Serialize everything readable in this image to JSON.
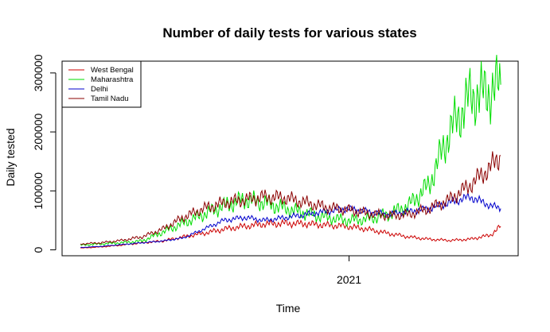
{
  "chart_data": {
    "type": "line",
    "title": "Number of daily tests for various states",
    "xlabel": "Time",
    "ylabel": "Daily tested",
    "x_ticks": [
      {
        "label": "2021",
        "value": 262
      }
    ],
    "y_ticks": [
      0,
      100000,
      200000,
      300000
    ],
    "ylim": [
      -10000,
      320000
    ],
    "xlim": [
      -18,
      427
    ],
    "grid": false,
    "legend_position": "top-left",
    "series": [
      {
        "name": "West Bengal",
        "color": "#cc0000",
        "x": [
          0,
          20,
          40,
          60,
          80,
          100,
          120,
          140,
          160,
          180,
          200,
          220,
          240,
          260,
          280,
          300,
          320,
          340,
          360,
          380,
          400,
          410
        ],
        "values": [
          3000,
          5000,
          8000,
          12000,
          15000,
          22000,
          28000,
          35000,
          40000,
          44000,
          45000,
          44000,
          42000,
          40000,
          35000,
          28000,
          22000,
          18000,
          16000,
          18000,
          25000,
          40000
        ]
      },
      {
        "name": "Maharashtra",
        "color": "#00dd00",
        "x": [
          0,
          20,
          40,
          60,
          80,
          100,
          120,
          140,
          160,
          180,
          200,
          220,
          240,
          260,
          280,
          300,
          320,
          340,
          360,
          380,
          400,
          410
        ],
        "values": [
          8000,
          10000,
          12000,
          15000,
          30000,
          45000,
          60000,
          75000,
          85000,
          80000,
          70000,
          62000,
          55000,
          50000,
          52000,
          60000,
          75000,
          110000,
          200000,
          260000,
          270000,
          280000
        ]
      },
      {
        "name": "Delhi",
        "color": "#0000cc",
        "x": [
          0,
          20,
          40,
          60,
          80,
          100,
          120,
          140,
          160,
          180,
          200,
          220,
          240,
          260,
          280,
          300,
          320,
          340,
          360,
          380,
          400,
          410
        ],
        "values": [
          4000,
          6000,
          9000,
          12000,
          15000,
          20000,
          35000,
          50000,
          55000,
          50000,
          55000,
          60000,
          65000,
          70000,
          65000,
          60000,
          65000,
          70000,
          80000,
          90000,
          75000,
          70000
        ]
      },
      {
        "name": "Tamil Nadu",
        "color": "#8b0000",
        "x": [
          0,
          20,
          40,
          60,
          80,
          100,
          120,
          140,
          160,
          180,
          200,
          220,
          240,
          260,
          280,
          300,
          320,
          340,
          360,
          380,
          400,
          410
        ],
        "values": [
          10000,
          12000,
          16000,
          22000,
          35000,
          55000,
          70000,
          80000,
          85000,
          90000,
          88000,
          80000,
          72000,
          68000,
          62000,
          58000,
          60000,
          70000,
          85000,
          110000,
          140000,
          160000
        ]
      }
    ]
  }
}
